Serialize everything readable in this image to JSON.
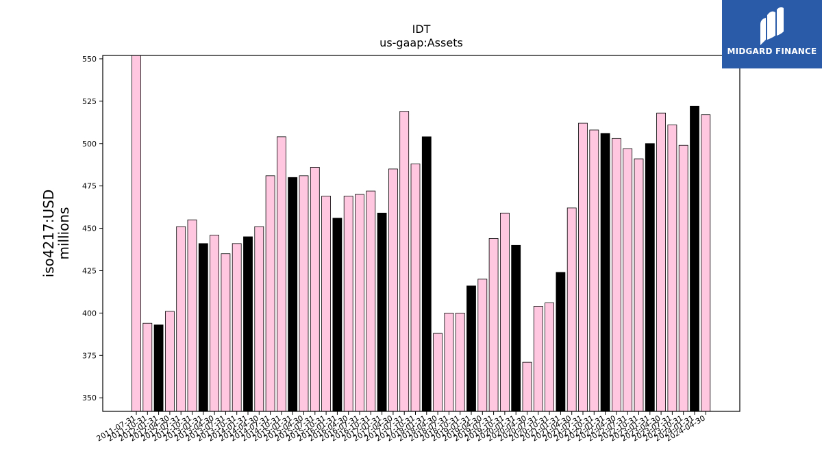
{
  "brand": {
    "name": "MIDGARD FINANCE",
    "bg_color": "#2a5ba8"
  },
  "chart_data": {
    "type": "bar",
    "title": "IDT",
    "subtitle": "us-gaap:Assets",
    "ylabel": "iso4217:USD",
    "ylabel_unit": "millions",
    "xlabel": "",
    "ylim": [
      342,
      552
    ],
    "yticks": [
      350,
      375,
      400,
      425,
      450,
      475,
      500,
      525,
      550
    ],
    "grid": false,
    "colors": {
      "quarterly": "#ffc8e0",
      "annual": "#000000",
      "edge": "#000000"
    },
    "categories": [
      "2011-07-31",
      "2011-10-31",
      "2012-01-31",
      "2012-04-30",
      "2012-07-31",
      "2012-10-31",
      "2013-01-31",
      "2013-04-30",
      "2013-07-31",
      "2013-10-31",
      "2014-01-31",
      "2014-04-30",
      "2014-07-31",
      "2014-10-31",
      "2015-01-31",
      "2015-04-30",
      "2015-07-31",
      "2015-10-31",
      "2016-01-31",
      "2016-04-30",
      "2016-07-31",
      "2016-10-31",
      "2017-01-31",
      "2017-04-30",
      "2017-07-31",
      "2017-10-31",
      "2018-01-31",
      "2018-04-30",
      "2018-07-31",
      "2018-10-31",
      "2019-01-31",
      "2019-04-30",
      "2019-07-31",
      "2019-10-31",
      "2020-01-31",
      "2020-04-30",
      "2020-07-31",
      "2020-10-31",
      "2021-01-31",
      "2021-04-30",
      "2021-07-31",
      "2021-10-31",
      "2022-01-31",
      "2022-04-30",
      "2022-07-31",
      "2022-10-31",
      "2023-01-31",
      "2023-04-30",
      "2023-07-31",
      "2023-10-31",
      "2024-01-31",
      "2024-04-30"
    ],
    "values": [
      552,
      394,
      393,
      401,
      451,
      455,
      441,
      446,
      435,
      441,
      445,
      451,
      481,
      504,
      480,
      481,
      486,
      469,
      456,
      469,
      470,
      472,
      459,
      485,
      519,
      488,
      504,
      388,
      400,
      400,
      416,
      420,
      444,
      459,
      440,
      371,
      404,
      406,
      424,
      462,
      512,
      508,
      506,
      503,
      497,
      491,
      500,
      518,
      511,
      499,
      522,
      517
    ],
    "annual": [
      false,
      false,
      true,
      false,
      false,
      false,
      true,
      false,
      false,
      false,
      true,
      false,
      false,
      false,
      true,
      false,
      false,
      false,
      true,
      false,
      false,
      false,
      true,
      false,
      false,
      false,
      true,
      false,
      false,
      false,
      true,
      false,
      false,
      false,
      true,
      false,
      false,
      false,
      true,
      false,
      false,
      false,
      true,
      false,
      false,
      false,
      true,
      false,
      false,
      false,
      true,
      false
    ]
  }
}
